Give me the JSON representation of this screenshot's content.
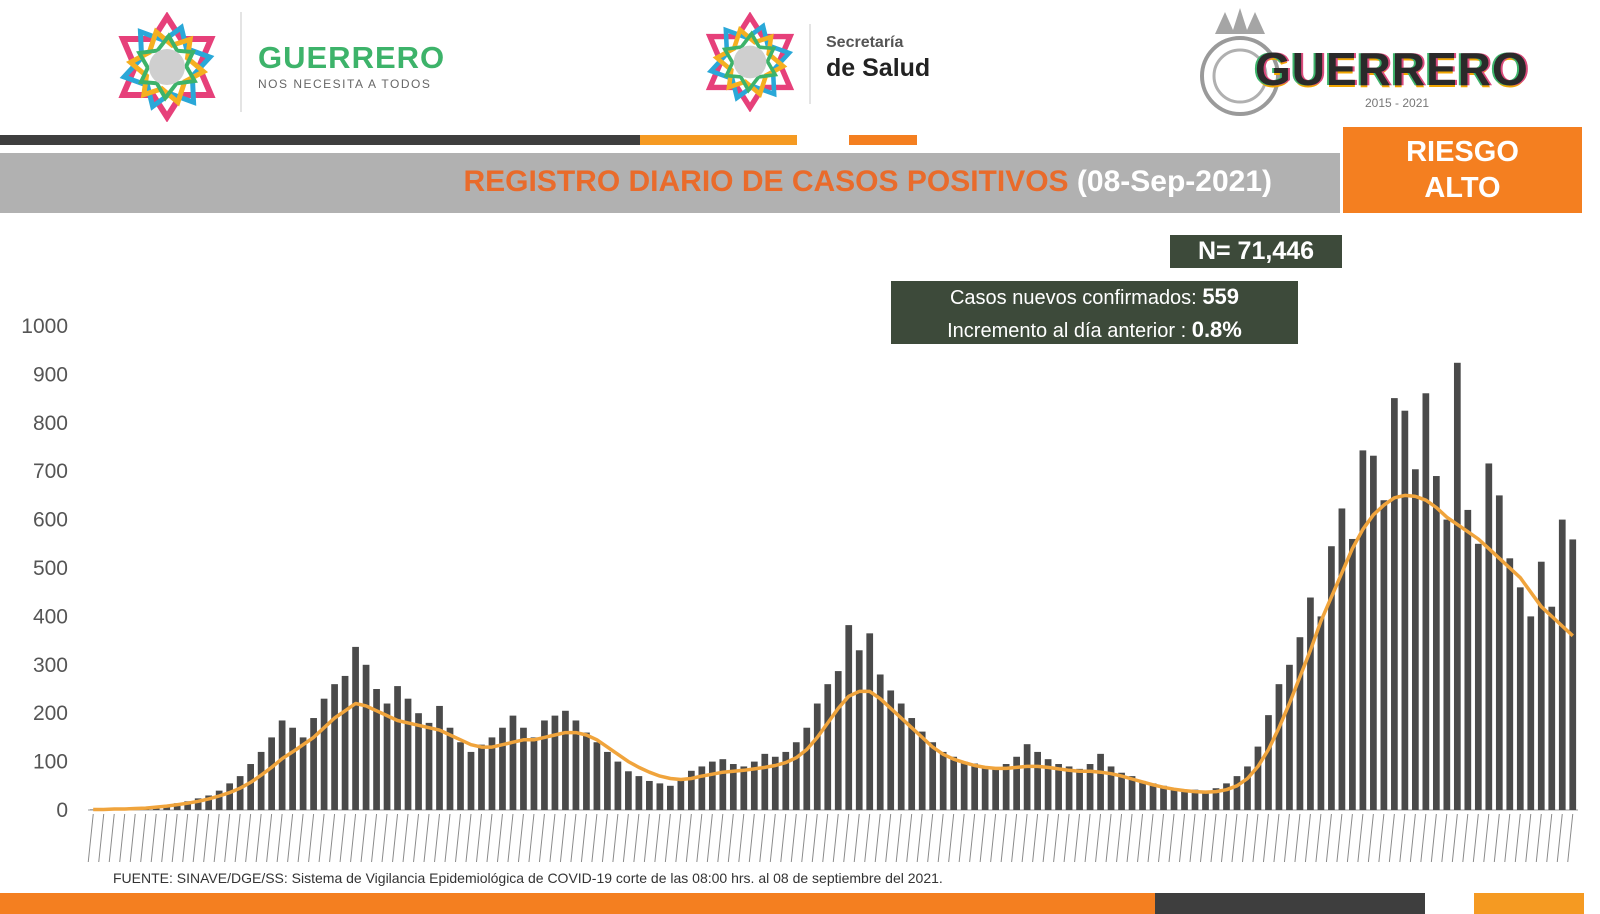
{
  "header": {
    "left_brand": {
      "name": "GUERRERO",
      "tagline": "NOS NECESITA A TODOS"
    },
    "center_brand": {
      "line1": "Secretaría",
      "line2": "de Salud"
    },
    "right_brand": {
      "name": "GUERRERO",
      "years": "2015 - 2021"
    }
  },
  "title": {
    "main": "REGISTRO DIARIO DE CASOS POSITIVOS",
    "date": "(08-Sep-2021)"
  },
  "risk": {
    "line1": "RIESGO",
    "line2": "ALTO"
  },
  "total": "N= 71,446",
  "info": {
    "new_label": "Casos nuevos confirmados:",
    "new_value": "559",
    "increment_label": "Incremento al día anterior :",
    "increment_value": "0.8%"
  },
  "source": "FUENTE: SINAVE/DGE/SS: Sistema de Vigilancia  Epidemiológica de COVID-19 corte de las 08:00 hrs. al 08 de septiembre del 2021.",
  "colors": {
    "bar": "#4a4a4a",
    "trend": "#f0a43c",
    "accent": "#f47f20",
    "title_accent": "#e96b2b",
    "dark_box": "#3d4a3a"
  },
  "chart_data": {
    "type": "bar",
    "title": "REGISTRO DIARIO DE CASOS POSITIVOS (08-Sep-2021)",
    "xlabel": "",
    "ylabel": "",
    "ylim": [
      0,
      1000
    ],
    "yticks": [
      0,
      100,
      200,
      300,
      400,
      500,
      600,
      700,
      800,
      900,
      1000
    ],
    "x_range": [
      "2020-03-14",
      "2021-09-08"
    ],
    "grid": false,
    "legend": "none",
    "series": [
      {
        "type": "bar",
        "values": [
          1,
          2,
          1,
          3,
          4,
          6,
          8,
          10,
          14,
          18,
          24,
          30,
          40,
          55,
          70,
          95,
          120,
          150,
          185,
          170,
          150,
          190,
          230,
          260,
          277,
          337,
          300,
          250,
          220,
          256,
          230,
          200,
          180,
          215,
          170,
          140,
          120,
          135,
          150,
          170,
          195,
          170,
          150,
          185,
          195,
          205,
          185,
          160,
          140,
          120,
          100,
          80,
          70,
          60,
          55,
          50,
          60,
          81,
          90,
          100,
          105,
          95,
          90,
          100,
          116,
          110,
          120,
          140,
          170,
          220,
          260,
          287,
          382,
          330,
          365,
          280,
          247,
          220,
          190,
          162,
          140,
          120,
          110,
          100,
          96,
          90,
          85,
          95,
          110,
          136,
          120,
          105,
          95,
          90,
          85,
          95,
          116,
          90,
          77,
          70,
          60,
          55,
          50,
          45,
          40,
          42,
          40,
          45,
          55,
          70,
          90,
          131,
          196,
          260,
          300,
          357,
          439,
          400,
          545,
          623,
          560,
          743,
          732,
          640,
          851,
          825,
          704,
          861,
          690,
          600,
          924,
          620,
          550,
          716,
          650,
          520,
          460,
          400,
          513,
          420,
          600,
          559
        ]
      },
      {
        "type": "line",
        "values": [
          1,
          1,
          2,
          2,
          3,
          4,
          6,
          8,
          11,
          14,
          18,
          23,
          29,
          36,
          45,
          57,
          72,
          88,
          106,
          120,
          135,
          150,
          170,
          190,
          205,
          220,
          215,
          205,
          195,
          185,
          180,
          175,
          170,
          165,
          155,
          145,
          135,
          130,
          130,
          135,
          140,
          145,
          145,
          150,
          155,
          160,
          160,
          155,
          145,
          130,
          115,
          100,
          88,
          78,
          70,
          65,
          63,
          65,
          70,
          74,
          78,
          80,
          82,
          85,
          88,
          92,
          98,
          108,
          125,
          150,
          180,
          210,
          235,
          245,
          245,
          230,
          210,
          190,
          170,
          150,
          130,
          115,
          105,
          98,
          92,
          88,
          86,
          86,
          88,
          90,
          90,
          88,
          85,
          82,
          80,
          80,
          78,
          75,
          70,
          64,
          58,
          52,
          47,
          43,
          40,
          38,
          37,
          38,
          42,
          50,
          65,
          90,
          125,
          170,
          220,
          275,
          330,
          390,
          440,
          490,
          540,
          580,
          610,
          630,
          645,
          650,
          648,
          640,
          625,
          605,
          590,
          575,
          560,
          540,
          520,
          500,
          480,
          450,
          420,
          400,
          380,
          360
        ]
      }
    ]
  }
}
